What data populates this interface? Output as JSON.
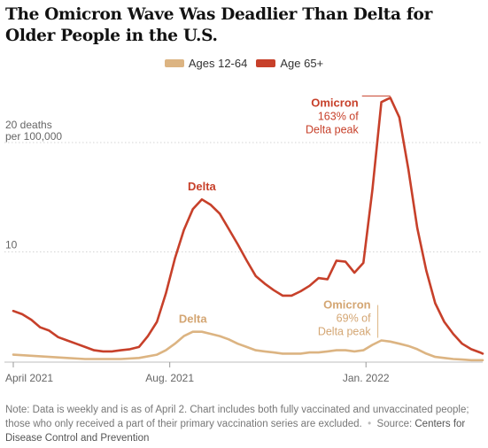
{
  "title": "The Omicron Wave Was Deadlier Than Delta for Older People in the U.S.",
  "colors": {
    "young": "#dcb482",
    "old": "#c7402a",
    "grid": "#d4d4d4",
    "axis": "#999999"
  },
  "legend": [
    {
      "label": "Ages 12-64",
      "color": "#dcb482"
    },
    {
      "label": "Age 65+",
      "color": "#c7402a"
    }
  ],
  "y_axis": {
    "top_label_line1": "20 deaths",
    "top_label_line2": "per 100,000",
    "mid_label": "10"
  },
  "annotations": {
    "delta_old": "Delta",
    "omicron_old_title": "Omicron",
    "omicron_old_line1": "163% of",
    "omicron_old_line2": "Delta peak",
    "delta_young": "Delta",
    "omicron_young_title": "Omicron",
    "omicron_young_line1": "69% of",
    "omicron_young_line2": "Delta peak"
  },
  "note": {
    "text": "Note: Data is weekly and is as of April 2. Chart includes both fully vaccinated and unvaccinated people; those who only received a part of their primary vaccination series are excluded.",
    "source_label": "Source:",
    "source": "Centers for Disease Control and Prevention"
  },
  "chart_data": {
    "type": "line",
    "x_unit": "week",
    "x_range": [
      "2021-04-01",
      "2022-04-02"
    ],
    "ylim": [
      0,
      25
    ],
    "y_ticks": [
      10,
      20
    ],
    "x_ticks": [
      {
        "date": "2021-04-01",
        "label": "April 2021"
      },
      {
        "date": "2021-08-01",
        "label": "Aug. 2021"
      },
      {
        "date": "2022-01-01",
        "label": "Jan. 2022"
      }
    ],
    "series": [
      {
        "name": "Age 65+",
        "color": "#c7402a",
        "points": [
          [
            "2021-04-01",
            4.6
          ],
          [
            "2021-04-08",
            4.3
          ],
          [
            "2021-04-15",
            3.8
          ],
          [
            "2021-04-22",
            3.1
          ],
          [
            "2021-04-29",
            2.8
          ],
          [
            "2021-05-06",
            2.2
          ],
          [
            "2021-05-13",
            1.9
          ],
          [
            "2021-05-20",
            1.6
          ],
          [
            "2021-05-27",
            1.3
          ],
          [
            "2021-06-03",
            1.0
          ],
          [
            "2021-06-10",
            0.9
          ],
          [
            "2021-06-17",
            0.9
          ],
          [
            "2021-06-24",
            1.0
          ],
          [
            "2021-07-01",
            1.1
          ],
          [
            "2021-07-08",
            1.3
          ],
          [
            "2021-07-15",
            2.3
          ],
          [
            "2021-07-22",
            3.6
          ],
          [
            "2021-07-29",
            6.2
          ],
          [
            "2021-08-05",
            9.4
          ],
          [
            "2021-08-12",
            12.0
          ],
          [
            "2021-08-19",
            13.9
          ],
          [
            "2021-08-26",
            14.8
          ],
          [
            "2021-09-02",
            14.3
          ],
          [
            "2021-09-09",
            13.5
          ],
          [
            "2021-09-16",
            12.1
          ],
          [
            "2021-09-23",
            10.7
          ],
          [
            "2021-09-30",
            9.2
          ],
          [
            "2021-10-07",
            7.8
          ],
          [
            "2021-10-14",
            7.1
          ],
          [
            "2021-10-21",
            6.5
          ],
          [
            "2021-10-28",
            6.0
          ],
          [
            "2021-11-04",
            6.0
          ],
          [
            "2021-11-11",
            6.4
          ],
          [
            "2021-11-18",
            6.9
          ],
          [
            "2021-11-25",
            7.6
          ],
          [
            "2021-12-02",
            7.5
          ],
          [
            "2021-12-09",
            9.2
          ],
          [
            "2021-12-16",
            9.1
          ],
          [
            "2021-12-23",
            8.1
          ],
          [
            "2021-12-30",
            9.0
          ],
          [
            "2022-01-06",
            15.7
          ],
          [
            "2022-01-13",
            23.7
          ],
          [
            "2022-01-20",
            24.1
          ],
          [
            "2022-01-27",
            22.3
          ],
          [
            "2022-02-03",
            17.6
          ],
          [
            "2022-02-10",
            12.2
          ],
          [
            "2022-02-17",
            8.3
          ],
          [
            "2022-02-24",
            5.3
          ],
          [
            "2022-03-03",
            3.6
          ],
          [
            "2022-03-10",
            2.5
          ],
          [
            "2022-03-17",
            1.6
          ],
          [
            "2022-03-24",
            1.1
          ],
          [
            "2022-03-31",
            0.8
          ],
          [
            "2022-04-02",
            0.7
          ]
        ]
      },
      {
        "name": "Ages 12-64",
        "color": "#dcb482",
        "points": [
          [
            "2021-04-01",
            0.6
          ],
          [
            "2021-04-15",
            0.5
          ],
          [
            "2021-04-29",
            0.4
          ],
          [
            "2021-05-13",
            0.3
          ],
          [
            "2021-05-27",
            0.2
          ],
          [
            "2021-06-10",
            0.2
          ],
          [
            "2021-06-24",
            0.2
          ],
          [
            "2021-07-08",
            0.3
          ],
          [
            "2021-07-22",
            0.6
          ],
          [
            "2021-07-29",
            1.0
          ],
          [
            "2021-08-05",
            1.6
          ],
          [
            "2021-08-12",
            2.3
          ],
          [
            "2021-08-19",
            2.7
          ],
          [
            "2021-08-26",
            2.7
          ],
          [
            "2021-09-02",
            2.5
          ],
          [
            "2021-09-09",
            2.3
          ],
          [
            "2021-09-16",
            2.0
          ],
          [
            "2021-09-23",
            1.6
          ],
          [
            "2021-09-30",
            1.3
          ],
          [
            "2021-10-07",
            1.0
          ],
          [
            "2021-10-14",
            0.9
          ],
          [
            "2021-10-21",
            0.8
          ],
          [
            "2021-10-28",
            0.7
          ],
          [
            "2021-11-04",
            0.7
          ],
          [
            "2021-11-11",
            0.7
          ],
          [
            "2021-11-18",
            0.8
          ],
          [
            "2021-11-25",
            0.8
          ],
          [
            "2021-12-02",
            0.9
          ],
          [
            "2021-12-09",
            1.0
          ],
          [
            "2021-12-16",
            1.0
          ],
          [
            "2021-12-23",
            0.9
          ],
          [
            "2021-12-30",
            1.0
          ],
          [
            "2022-01-06",
            1.5
          ],
          [
            "2022-01-13",
            1.9
          ],
          [
            "2022-01-20",
            1.8
          ],
          [
            "2022-01-27",
            1.6
          ],
          [
            "2022-02-03",
            1.4
          ],
          [
            "2022-02-10",
            1.1
          ],
          [
            "2022-02-17",
            0.7
          ],
          [
            "2022-02-24",
            0.4
          ],
          [
            "2022-03-03",
            0.3
          ],
          [
            "2022-03-10",
            0.2
          ],
          [
            "2022-03-17",
            0.15
          ],
          [
            "2022-03-24",
            0.1
          ],
          [
            "2022-04-02",
            0.1
          ]
        ]
      }
    ]
  }
}
